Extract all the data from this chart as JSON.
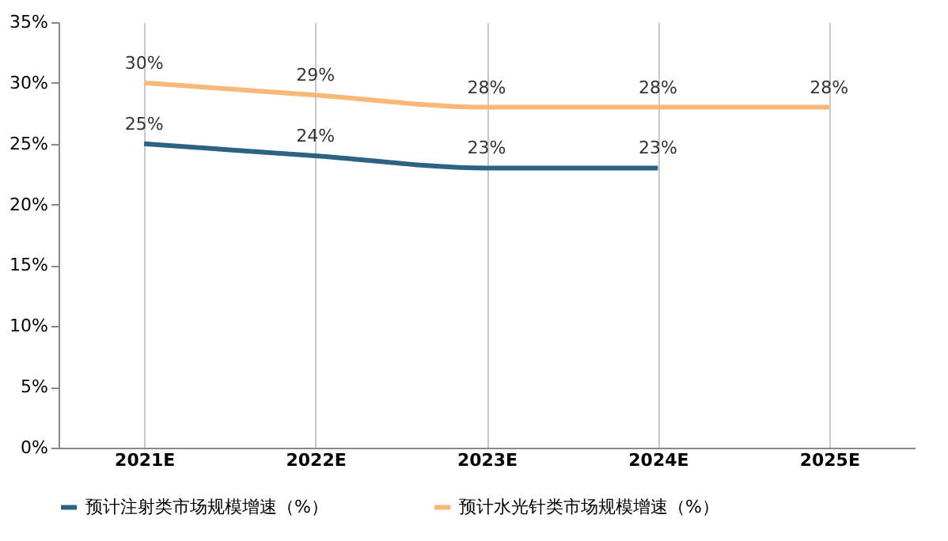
{
  "chart_data": {
    "type": "line",
    "categories": [
      "2021E",
      "2022E",
      "2023E",
      "2024E",
      "2025E"
    ],
    "series": [
      {
        "name": "预计注射类市场规模增速（%）",
        "color": "#2e6283",
        "values": [
          25,
          24,
          23,
          23,
          null
        ],
        "value_labels": [
          "25%",
          "24%",
          "23%",
          "23%",
          null
        ]
      },
      {
        "name": "预计水光针类市场规模增速（%）",
        "color": "#f8b878",
        "values": [
          30,
          29,
          28,
          28,
          28
        ],
        "value_labels": [
          "30%",
          "29%",
          "28%",
          "28%",
          "28%"
        ]
      }
    ],
    "ylim": [
      0,
      35
    ],
    "yticks": [
      {
        "value": 0,
        "label": "0%"
      },
      {
        "value": 5,
        "label": "5%"
      },
      {
        "value": 10,
        "label": "10%"
      },
      {
        "value": 15,
        "label": "15%"
      },
      {
        "value": 20,
        "label": "20%"
      },
      {
        "value": 25,
        "label": "25%"
      },
      {
        "value": 30,
        "label": "30%"
      },
      {
        "value": 35,
        "label": "35%"
      }
    ],
    "grid": "x",
    "legend": "bottom",
    "marker": "none",
    "line_style": "solid"
  }
}
